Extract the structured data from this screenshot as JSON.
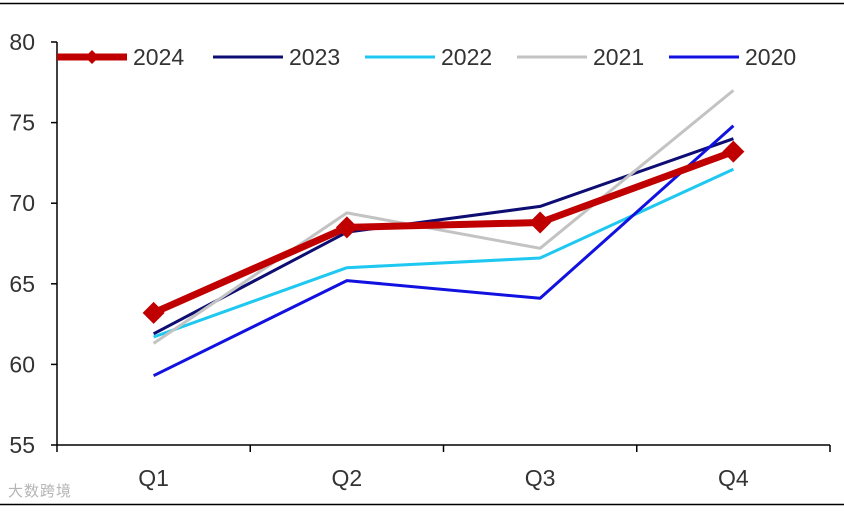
{
  "watermark": "大数跨境",
  "chart_data": {
    "type": "line",
    "categories": [
      "Q1",
      "Q2",
      "Q3",
      "Q4"
    ],
    "ylim": [
      55,
      80
    ],
    "yticks": [
      55,
      60,
      65,
      70,
      75,
      80
    ],
    "grid": false,
    "legend_position": "top",
    "series": [
      {
        "name": "2024",
        "color": "#C00000",
        "marker": "diamond",
        "emphasis": true,
        "values": [
          63.2,
          68.5,
          68.8,
          73.2
        ]
      },
      {
        "name": "2023",
        "color": "#0D0D73",
        "values": [
          61.9,
          68.2,
          69.8,
          74.0
        ]
      },
      {
        "name": "2022",
        "color": "#1EC8F0",
        "values": [
          61.7,
          66.0,
          66.6,
          72.1
        ]
      },
      {
        "name": "2021",
        "color": "#C3C3C3",
        "values": [
          61.3,
          69.4,
          67.2,
          77.0
        ]
      },
      {
        "name": "2020",
        "color": "#1212E0",
        "values": [
          59.3,
          65.2,
          64.1,
          74.8
        ]
      }
    ]
  }
}
